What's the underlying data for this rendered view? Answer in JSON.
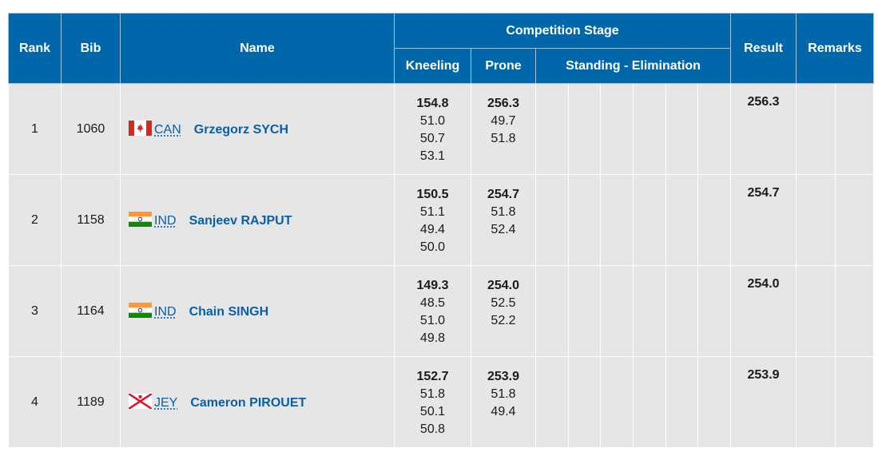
{
  "colors": {
    "header": "#0067ab",
    "row": "#e6e6e6",
    "link": "#0a5ea8"
  },
  "headers": {
    "rank": "Rank",
    "bib": "Bib",
    "name": "Name",
    "stage": "Competition Stage",
    "kneeling": "Kneeling",
    "prone": "Prone",
    "standing": "Standing - Elimination",
    "result": "Result",
    "remarks": "Remarks"
  },
  "rows": [
    {
      "rank": "1",
      "bib": "1060",
      "noc": "CAN",
      "flag_icon": "canada-flag-icon",
      "name": "Grzegorz SYCH",
      "kneeling": {
        "total": "154.8",
        "series": [
          "51.0",
          "50.7",
          "53.1"
        ]
      },
      "prone": {
        "total": "256.3",
        "series": [
          "49.7",
          "51.8"
        ]
      },
      "result": "256.3"
    },
    {
      "rank": "2",
      "bib": "1158",
      "noc": "IND",
      "flag_icon": "india-flag-icon",
      "name": "Sanjeev RAJPUT",
      "kneeling": {
        "total": "150.5",
        "series": [
          "51.1",
          "49.4",
          "50.0"
        ]
      },
      "prone": {
        "total": "254.7",
        "series": [
          "51.8",
          "52.4"
        ]
      },
      "result": "254.7"
    },
    {
      "rank": "3",
      "bib": "1164",
      "noc": "IND",
      "flag_icon": "india-flag-icon",
      "name": "Chain SINGH",
      "kneeling": {
        "total": "149.3",
        "series": [
          "48.5",
          "51.0",
          "49.8"
        ]
      },
      "prone": {
        "total": "254.0",
        "series": [
          "52.5",
          "52.2"
        ]
      },
      "result": "254.0"
    },
    {
      "rank": "4",
      "bib": "1189",
      "noc": "JEY",
      "flag_icon": "jersey-flag-icon",
      "name": "Cameron PIROUET",
      "kneeling": {
        "total": "152.7",
        "series": [
          "51.8",
          "50.1",
          "50.8"
        ]
      },
      "prone": {
        "total": "253.9",
        "series": [
          "51.8",
          "49.4"
        ]
      },
      "result": "253.9"
    }
  ]
}
